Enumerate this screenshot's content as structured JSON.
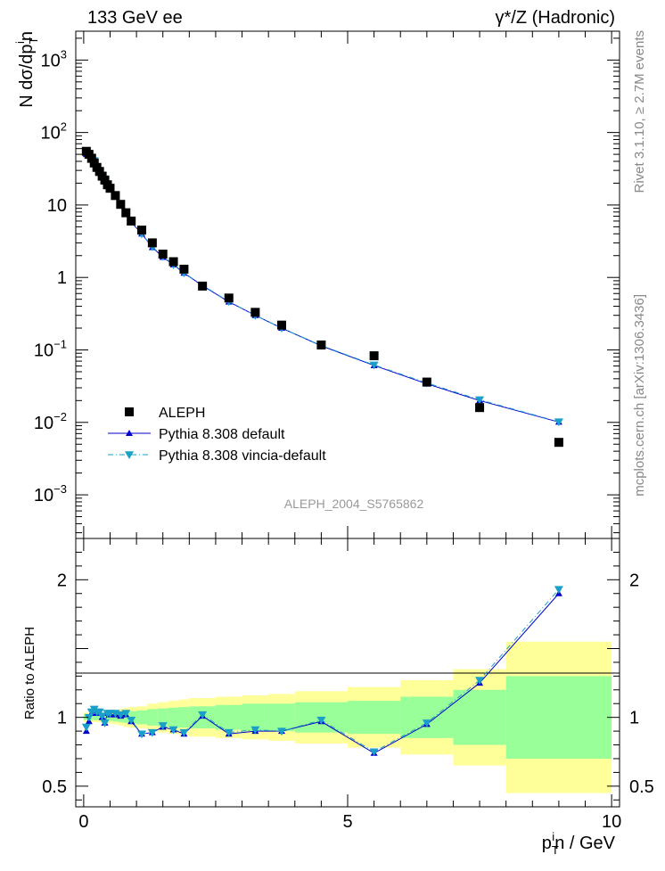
{
  "header": {
    "left": "133 GeV ee",
    "right": "γ*/Z (Hadronic)"
  },
  "side_text": {
    "rivet": "Rivet 3.1.10, ≥ 2.7M events",
    "mcplots": "mcplots.cern.ch [arXiv:1306.3436]"
  },
  "watermark": "ALEPH_2004_S5765862",
  "colors": {
    "data": "#000000",
    "pythia_default": "#0000cc",
    "vincia": "#1a9fc8",
    "band_inner": "#99ff99",
    "band_outer": "#ffff99"
  },
  "chart_data": [
    {
      "type": "scatter",
      "title": "",
      "ylabel": "N dσ/dp_T^in",
      "ylabel_parts": {
        "main": "N dσ/dp",
        "sub": "T",
        "sup": "i",
        "tail": "n"
      },
      "xlabel": "",
      "xlim": [
        -0.15,
        10.15
      ],
      "ylim": [
        0.00025,
        2500
      ],
      "yscale": "log",
      "ytick_labels": [
        {
          "value": 0.001,
          "base": "10",
          "exp": "−3"
        },
        {
          "value": 0.01,
          "base": "10",
          "exp": "−2"
        },
        {
          "value": 0.1,
          "base": "10",
          "exp": "−1"
        },
        {
          "value": 1,
          "base": "1",
          "exp": ""
        },
        {
          "value": 10,
          "base": "10",
          "exp": ""
        },
        {
          "value": 100,
          "base": "10",
          "exp": "2"
        },
        {
          "value": 1000,
          "base": "10",
          "exp": "3"
        }
      ],
      "legend": {
        "position": "bottom-left",
        "entries": [
          "ALEPH",
          "Pythia 8.308 default",
          "Pythia 8.308 vincia-default"
        ]
      },
      "series": [
        {
          "name": "ALEPH",
          "x": [
            0.05,
            0.1,
            0.15,
            0.2,
            0.25,
            0.3,
            0.35,
            0.4,
            0.45,
            0.5,
            0.6,
            0.7,
            0.8,
            0.9,
            1.1,
            1.3,
            1.5,
            1.7,
            1.9,
            2.25,
            2.75,
            3.25,
            3.75,
            4.5,
            5.5,
            6.5,
            7.5,
            9.0
          ],
          "y": [
            55,
            50,
            44,
            38,
            33,
            29,
            25,
            22,
            19,
            17,
            13.5,
            10.2,
            7.8,
            6.0,
            4.5,
            3.0,
            2.1,
            1.65,
            1.3,
            0.76,
            0.52,
            0.33,
            0.22,
            0.117,
            0.083,
            0.036,
            0.016,
            0.0053
          ]
        },
        {
          "name": "Pythia 8.308 default",
          "x": [
            0.05,
            0.1,
            0.15,
            0.2,
            0.25,
            0.3,
            0.35,
            0.4,
            0.45,
            0.5,
            0.6,
            0.7,
            0.8,
            0.9,
            1.1,
            1.3,
            1.5,
            1.7,
            1.9,
            2.25,
            2.75,
            3.25,
            3.75,
            4.5,
            5.5,
            6.5,
            7.5,
            9.0
          ],
          "y": [
            50,
            48,
            45,
            40,
            34,
            30,
            25,
            23,
            19,
            17.5,
            13.8,
            10.4,
            8.0,
            5.8,
            4.0,
            2.6,
            1.9,
            1.5,
            1.15,
            0.77,
            0.46,
            0.3,
            0.2,
            0.114,
            0.061,
            0.034,
            0.02,
            0.0101
          ]
        },
        {
          "name": "Pythia 8.308 vincia-default",
          "x": [
            0.05,
            0.1,
            0.15,
            0.2,
            0.25,
            0.3,
            0.35,
            0.4,
            0.45,
            0.5,
            0.6,
            0.7,
            0.8,
            0.9,
            1.1,
            1.3,
            1.5,
            1.7,
            1.9,
            2.25,
            2.75,
            3.25,
            3.75,
            4.5,
            5.5,
            6.5,
            7.5,
            9.0
          ],
          "y": [
            51,
            49,
            46,
            41,
            34,
            30,
            25,
            23,
            19,
            17.6,
            13.9,
            10.5,
            8.1,
            5.9,
            4.0,
            2.65,
            1.95,
            1.5,
            1.16,
            0.78,
            0.465,
            0.3,
            0.2,
            0.115,
            0.062,
            0.035,
            0.0205,
            0.0102
          ]
        }
      ]
    },
    {
      "type": "line",
      "title": "",
      "ylabel": "Ratio to ALEPH",
      "xlabel": "p_T^in / GeV",
      "xlabel_parts": {
        "main": "p",
        "sub": "T",
        "sup": "i",
        "tail": "n / GeV"
      },
      "xlim": [
        -0.15,
        10.15
      ],
      "ylim": [
        0.35,
        2.3
      ],
      "xtick_labels": [
        "0",
        "5",
        "10"
      ],
      "xtick_values": [
        0,
        5,
        10
      ],
      "ytick_labels": [
        "0.5",
        "1",
        "2"
      ],
      "ytick_values": [
        0.5,
        1,
        2
      ],
      "bands": {
        "edges": [
          0,
          0.125,
          0.175,
          0.225,
          0.275,
          0.325,
          0.375,
          0.425,
          0.475,
          0.55,
          0.65,
          0.75,
          0.85,
          1.0,
          1.2,
          1.4,
          1.6,
          1.8,
          2.0,
          2.5,
          3.0,
          3.5,
          4.0,
          5.0,
          6.0,
          7.0,
          8.0,
          10.0
        ],
        "inner_half": [
          0.02,
          0.02,
          0.02,
          0.02,
          0.02,
          0.02,
          0.02,
          0.025,
          0.025,
          0.03,
          0.035,
          0.04,
          0.045,
          0.05,
          0.06,
          0.065,
          0.07,
          0.075,
          0.08,
          0.09,
          0.1,
          0.1,
          0.11,
          0.12,
          0.15,
          0.2,
          0.3
        ],
        "outer_half": [
          0.035,
          0.035,
          0.035,
          0.035,
          0.035,
          0.035,
          0.035,
          0.04,
          0.045,
          0.05,
          0.06,
          0.07,
          0.075,
          0.08,
          0.1,
          0.11,
          0.12,
          0.13,
          0.14,
          0.15,
          0.16,
          0.17,
          0.19,
          0.22,
          0.27,
          0.35,
          0.55
        ]
      },
      "series": [
        {
          "name": "Pythia 8.308 default",
          "x": [
            0.05,
            0.1,
            0.15,
            0.2,
            0.25,
            0.3,
            0.35,
            0.4,
            0.45,
            0.5,
            0.6,
            0.7,
            0.8,
            0.9,
            1.1,
            1.3,
            1.5,
            1.7,
            1.9,
            2.25,
            2.75,
            3.25,
            3.75,
            4.5,
            5.5,
            6.5,
            7.5,
            9.0
          ],
          "y": [
            0.9,
            0.97,
            1.03,
            1.05,
            1.03,
            1.03,
            1.0,
            0.96,
            1.03,
            1.02,
            1.02,
            1.01,
            1.02,
            0.97,
            0.88,
            0.89,
            0.93,
            0.91,
            0.88,
            1.01,
            0.88,
            0.9,
            0.9,
            0.97,
            0.74,
            0.95,
            1.25,
            1.9
          ]
        },
        {
          "name": "Pythia 8.308 vincia-default",
          "x": [
            0.05,
            0.1,
            0.15,
            0.2,
            0.25,
            0.3,
            0.35,
            0.4,
            0.45,
            0.5,
            0.6,
            0.7,
            0.8,
            0.9,
            1.1,
            1.3,
            1.5,
            1.7,
            1.9,
            2.25,
            2.75,
            3.25,
            3.75,
            4.5,
            5.5,
            6.5,
            7.5,
            9.0
          ],
          "y": [
            0.93,
            1.0,
            1.04,
            1.06,
            1.04,
            1.04,
            1.01,
            0.96,
            1.03,
            1.03,
            1.03,
            1.02,
            1.03,
            0.98,
            0.88,
            0.89,
            0.94,
            0.91,
            0.89,
            1.02,
            0.89,
            0.91,
            0.9,
            0.98,
            0.75,
            0.96,
            1.27,
            1.93
          ]
        }
      ]
    }
  ]
}
